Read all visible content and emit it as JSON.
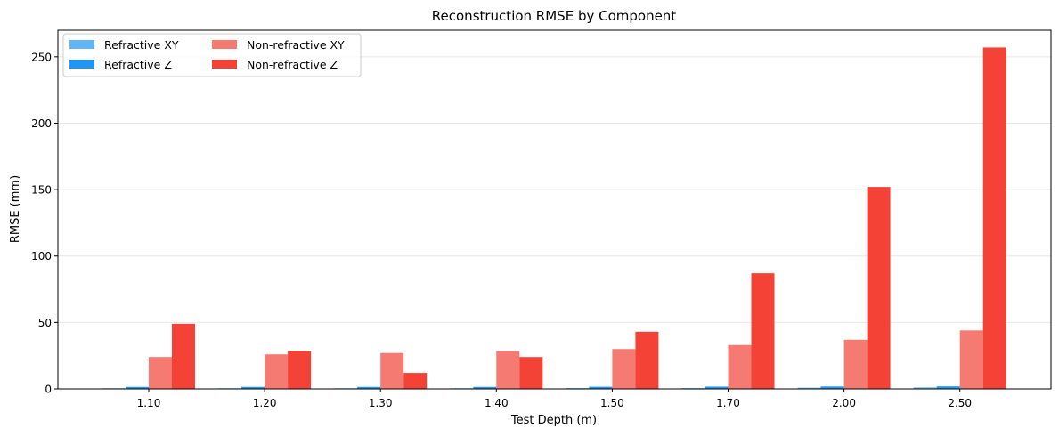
{
  "chart_data": {
    "type": "bar",
    "title": "Reconstruction RMSE by Component",
    "xlabel": "Test Depth (m)",
    "ylabel": "RMSE (mm)",
    "ylim": [
      0,
      270
    ],
    "yticks": [
      0,
      50,
      100,
      150,
      200,
      250
    ],
    "grid": "y",
    "legend_position": "top-left",
    "categories": [
      "1.10",
      "1.20",
      "1.30",
      "1.40",
      "1.50",
      "1.70",
      "2.00",
      "2.50"
    ],
    "series": [
      {
        "name": "Refractive XY",
        "color": "#64b5f6",
        "values": [
          0.5,
          0.5,
          0.5,
          0.5,
          0.6,
          0.6,
          0.9,
          1.1
        ]
      },
      {
        "name": "Refractive Z",
        "color": "#2196f3",
        "values": [
          1.5,
          1.5,
          1.5,
          1.5,
          1.6,
          1.7,
          1.8,
          1.9
        ]
      },
      {
        "name": "Non-refractive XY",
        "color": "#f47a72",
        "values": [
          24,
          26,
          27,
          28.5,
          30,
          33,
          37,
          44
        ]
      },
      {
        "name": "Non-refractive Z",
        "color": "#f44336",
        "values": [
          49,
          28.5,
          12,
          24,
          43,
          87,
          152,
          257
        ]
      }
    ]
  }
}
